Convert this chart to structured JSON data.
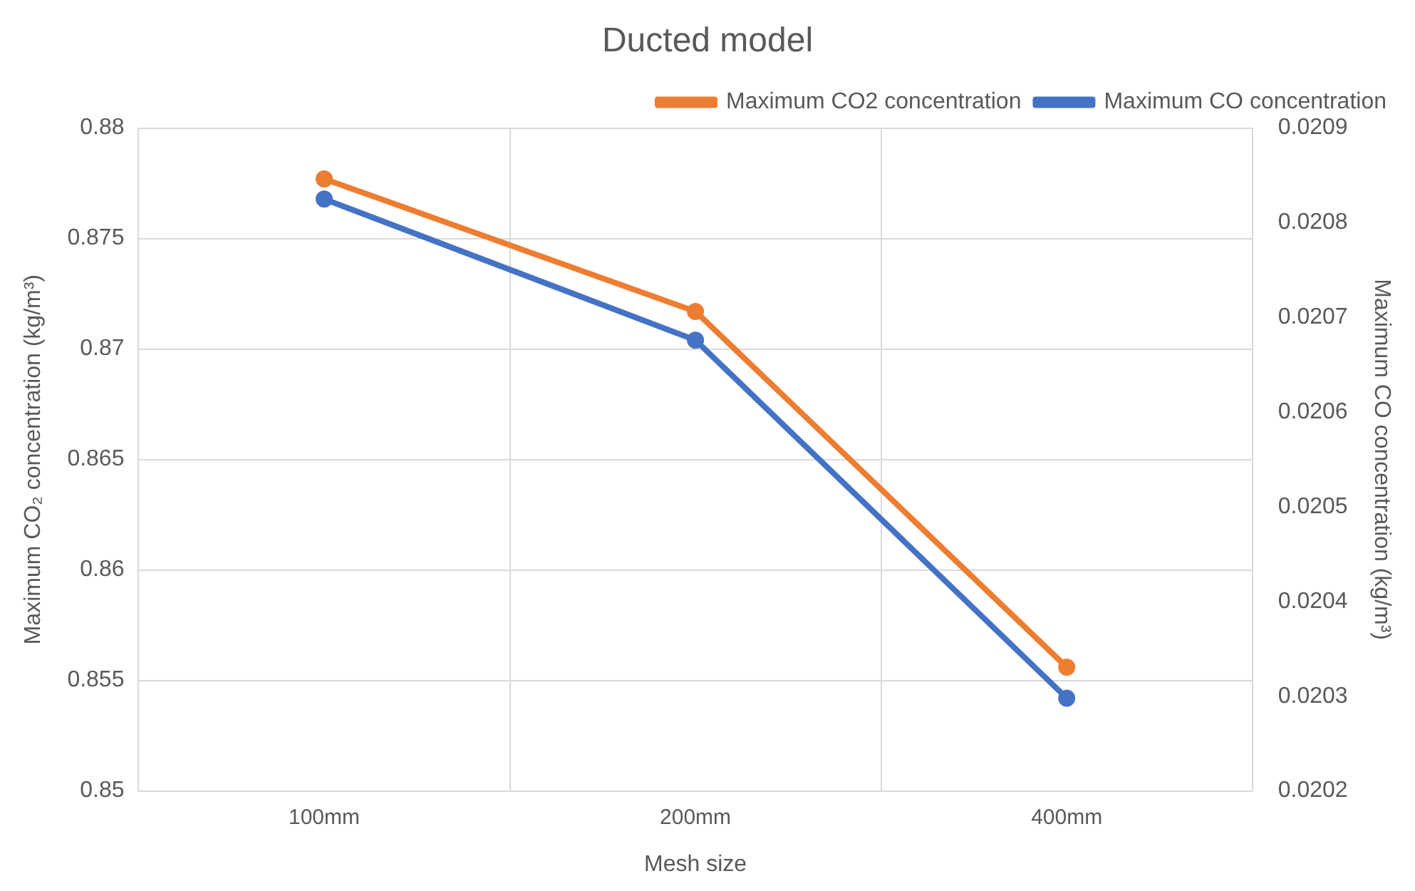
{
  "chart_data": {
    "type": "line",
    "title": "Ducted model",
    "xlabel": "Mesh size",
    "ylabel": "Maximum CO₂ concentration (kg/m³)",
    "y2label": "Maximum CO concentration (kg/m³)",
    "categories": [
      "100mm",
      "200mm",
      "400mm"
    ],
    "series": [
      {
        "name": "Maximum CO2 concentration",
        "color": "#ed7d31",
        "values": [
          0.8777,
          0.8717,
          0.8556
        ]
      },
      {
        "name": "Maximum CO concentration",
        "color": "#4472c4",
        "values": [
          0.020825,
          0.020676,
          0.020298
        ],
        "axis": "y2"
      }
    ],
    "ylim": [
      0.85,
      0.88
    ],
    "yticks": [
      0.85,
      0.855,
      0.86,
      0.865,
      0.87,
      0.875,
      0.88
    ],
    "y2lim": [
      0.0202,
      0.0209
    ],
    "y2ticks": [
      0.0202,
      0.0203,
      0.0204,
      0.0205,
      0.0206,
      0.0207,
      0.0208,
      0.0209
    ],
    "grid": true,
    "legend": "top right",
    "marker": "circle",
    "line_style": "solid"
  }
}
